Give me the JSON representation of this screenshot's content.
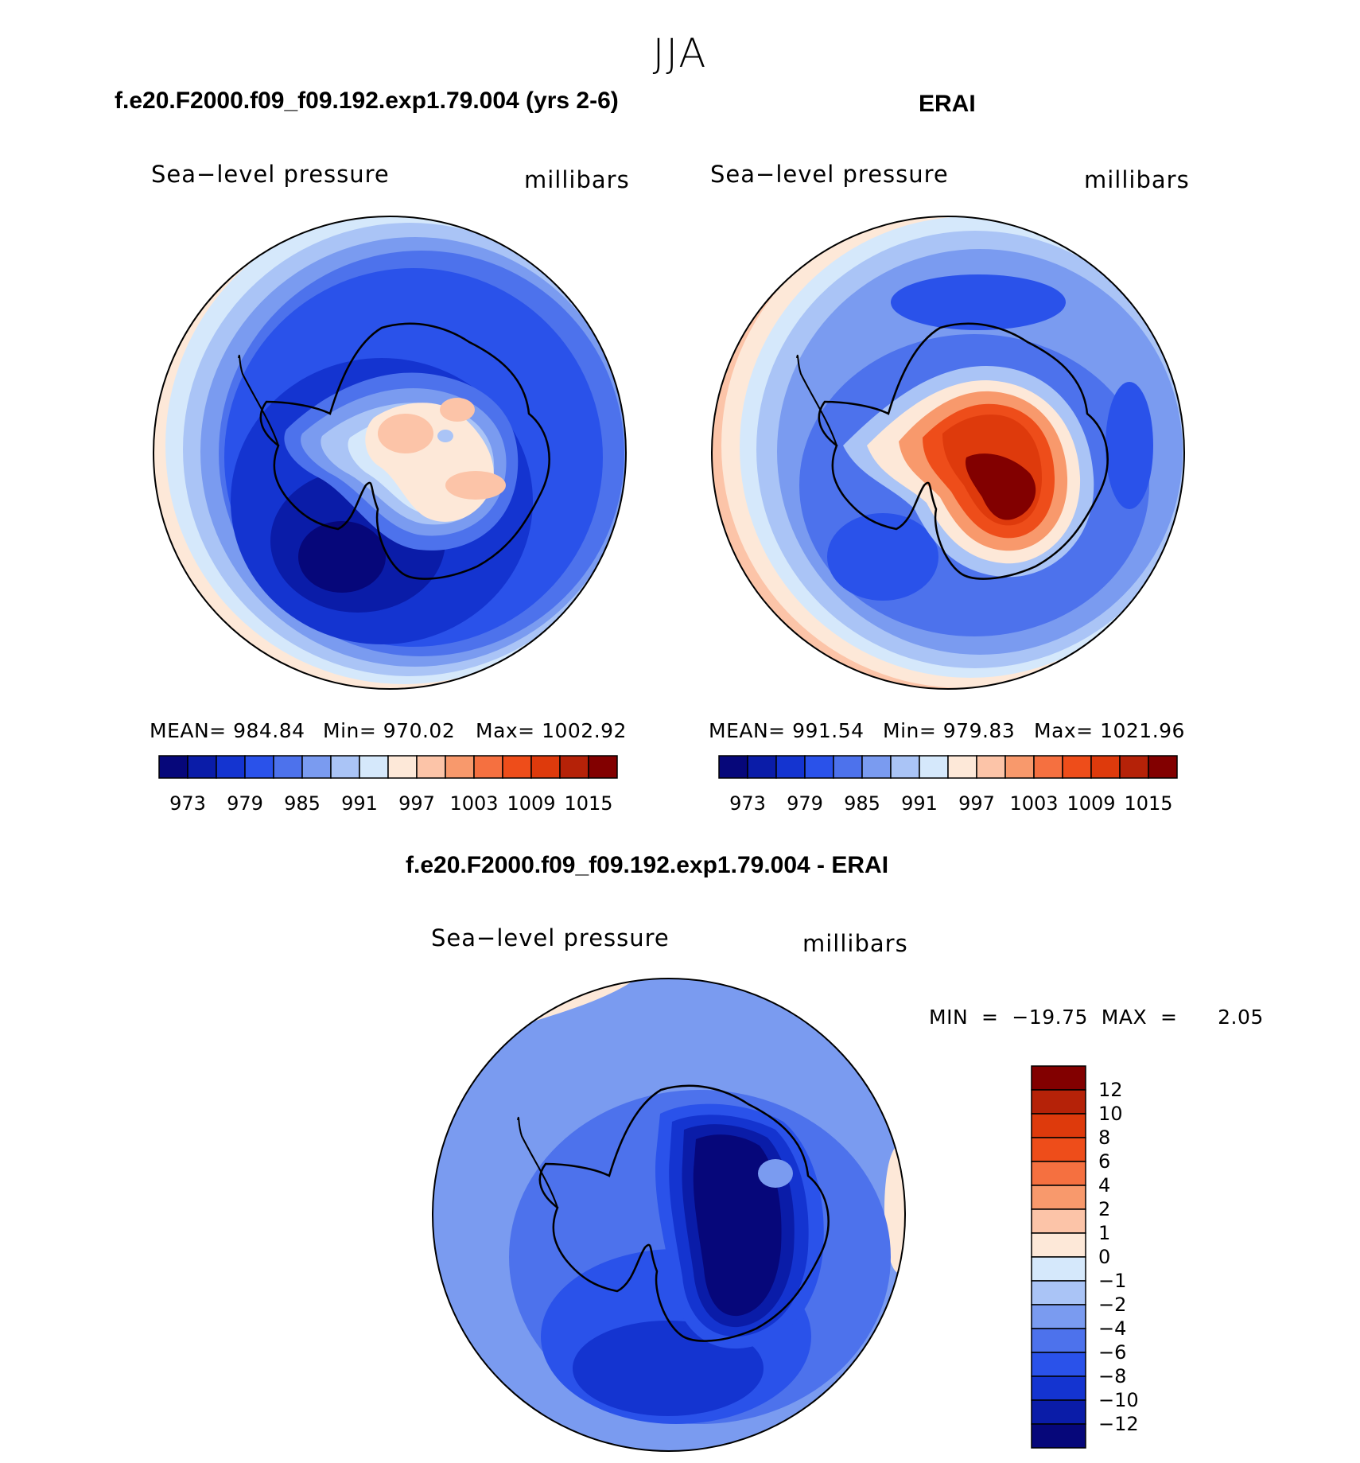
{
  "figure": {
    "season": "JJA",
    "colors": {
      "abs_levels": [
        "#06077a",
        "#0a1ca8",
        "#1434d0",
        "#2a52ea",
        "#4d72ec",
        "#7a9bf0",
        "#aac4f6",
        "#d5e8fb",
        "#fde8d8",
        "#fcc4a8",
        "#f8996c",
        "#f57040",
        "#ee4d1a",
        "#de3a0c",
        "#b52208",
        "#820000"
      ],
      "diff_levels": [
        "#06077a",
        "#0a1ca8",
        "#1434d0",
        "#2a52ea",
        "#4d72ec",
        "#7a9bf0",
        "#aac4f6",
        "#d5e8fb",
        "#fde8d8",
        "#fcc4a8",
        "#f8996c",
        "#f57040",
        "#ee4d1a",
        "#de3a0c",
        "#b52208",
        "#820000"
      ]
    }
  },
  "chart_data": [
    {
      "type": "heatmap",
      "title": "f.e20.F2000.f09_f09.192.exp1.79.004 (yrs 2-6)",
      "variable": "Sea−level pressure",
      "units": "millibars",
      "stats": {
        "mean": "MEAN=  984.84",
        "min": "Min=  970.02",
        "max": "Max=  1002.92"
      },
      "mean": 984.84,
      "min": 970.02,
      "max": 1002.92,
      "colorbar_ticks": [
        "973",
        "979",
        "985",
        "991",
        "997",
        "1003",
        "1009",
        "1015"
      ],
      "colorbar_levels": [
        973,
        976,
        979,
        982,
        985,
        988,
        991,
        994,
        997,
        1000,
        1003,
        1006,
        1009,
        1012,
        1015
      ]
    },
    {
      "type": "heatmap",
      "title": "ERAI",
      "variable": "Sea−level pressure",
      "units": "millibars",
      "stats": {
        "mean": "MEAN=  991.54",
        "min": "Min=  979.83",
        "max": "Max=  1021.96"
      },
      "mean": 991.54,
      "min": 979.83,
      "max": 1021.96,
      "colorbar_ticks": [
        "973",
        "979",
        "985",
        "991",
        "997",
        "1003",
        "1009",
        "1015"
      ],
      "colorbar_levels": [
        973,
        976,
        979,
        982,
        985,
        988,
        991,
        994,
        997,
        1000,
        1003,
        1006,
        1009,
        1012,
        1015
      ]
    },
    {
      "type": "heatmap",
      "title": "f.e20.F2000.f09_f09.192.exp1.79.004 - ERAI",
      "variable": "Sea−level pressure",
      "units": "millibars",
      "stats": {
        "minmax": "MIN  =  −19.75  MAX  =      2.05"
      },
      "min": -19.75,
      "max": 2.05,
      "colorbar_ticks": [
        "12",
        "10",
        "8",
        "6",
        "4",
        "2",
        "1",
        "0",
        "−1",
        "−2",
        "−4",
        "−6",
        "−8",
        "−10",
        "−12"
      ],
      "colorbar_levels": [
        -12,
        -10,
        -8,
        -6,
        -4,
        -2,
        -1,
        0,
        1,
        2,
        4,
        6,
        8,
        10,
        12
      ]
    }
  ]
}
